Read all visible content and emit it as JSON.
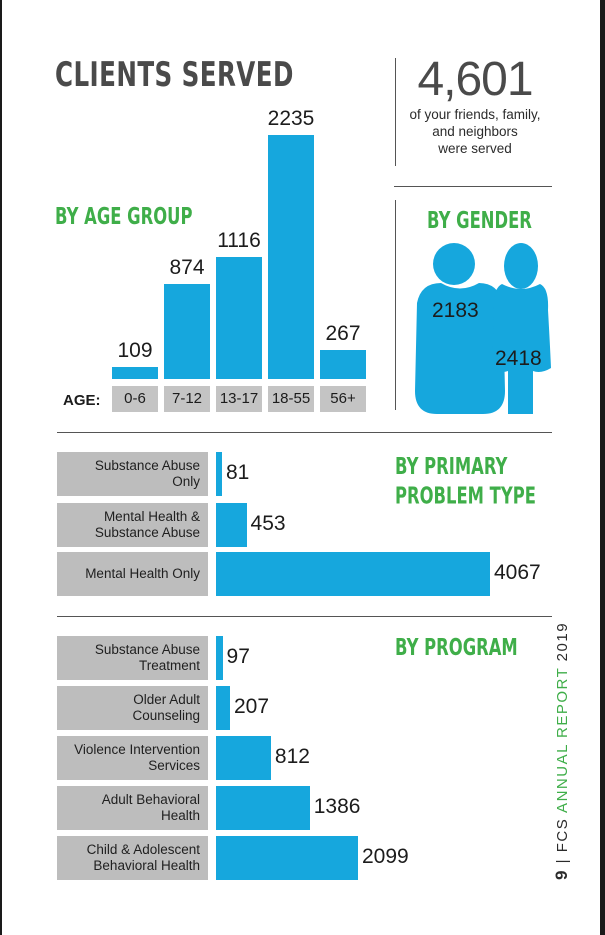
{
  "title": "CLIENTS SERVED",
  "summary": {
    "number": "4,601",
    "caption": "of your friends, family,\nand neighbors\nwere served"
  },
  "sections": {
    "age": "BY AGE GROUP",
    "gender": "BY GENDER",
    "problem": "BY PRIMARY\nPROBLEM TYPE",
    "program": "BY PROGRAM"
  },
  "age_axis_title": "AGE:",
  "colors": {
    "bar": "#16a7dd",
    "heading": "#3fae49",
    "label_bg": "#c4c4c4"
  },
  "chart_data": [
    {
      "type": "bar",
      "title": "BY AGE GROUP",
      "xlabel": "AGE:",
      "categories": [
        "0-6",
        "7-12",
        "13-17",
        "18-55",
        "56+"
      ],
      "values": [
        109,
        874,
        1116,
        2235,
        267
      ],
      "data_labels": [
        "109",
        "874",
        "1116",
        "2235",
        "267"
      ]
    },
    {
      "type": "pictogram",
      "title": "BY GENDER",
      "values": [
        2183,
        2418
      ],
      "data_labels": [
        "2183",
        "2418"
      ]
    },
    {
      "type": "bar",
      "orientation": "horizontal",
      "title": "BY PRIMARY PROBLEM TYPE",
      "categories": [
        "Substance Abuse\nOnly",
        "Mental Health &\nSubstance Abuse",
        "Mental Health Only"
      ],
      "values": [
        81,
        453,
        4067
      ],
      "data_labels": [
        "81",
        "453",
        "4067"
      ]
    },
    {
      "type": "bar",
      "orientation": "horizontal",
      "title": "BY PROGRAM",
      "categories": [
        "Substance Abuse\nTreatment",
        "Older Adult\nCounseling",
        "Violence Intervention\nServices",
        "Adult Behavioral\nHealth",
        "Child & Adolescent\nBehavioral Health"
      ],
      "values": [
        97,
        207,
        812,
        1386,
        2099
      ],
      "data_labels": [
        "97",
        "207",
        "812",
        "1386",
        "2099"
      ]
    }
  ],
  "footer": {
    "page": "9",
    "sep": "|",
    "org": "FCS",
    "report": "ANNUAL REPORT",
    "year": "2019"
  }
}
